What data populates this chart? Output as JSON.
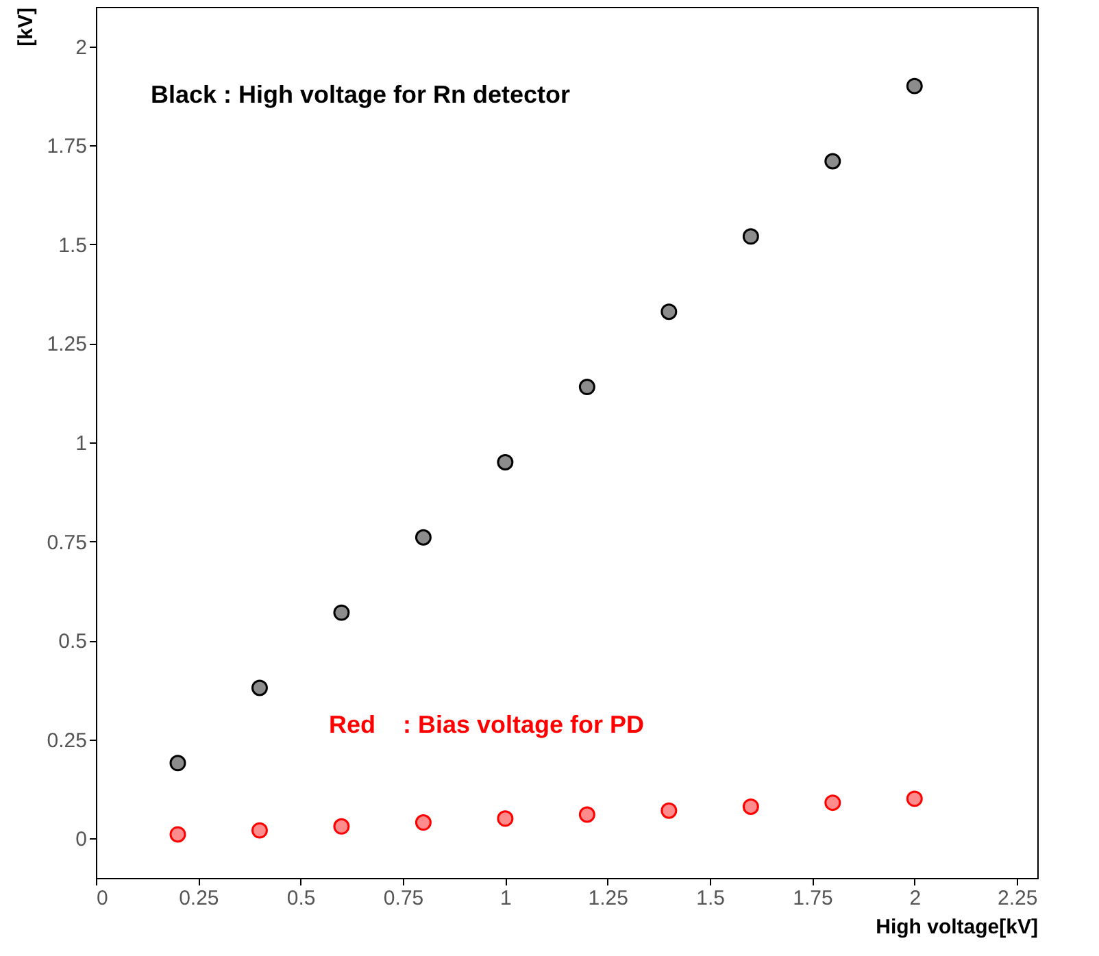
{
  "chart_data": {
    "type": "scatter",
    "xlabel": "High voltage[kV]",
    "ylabel": "[kV]",
    "x": [
      0.2,
      0.4,
      0.6,
      0.8,
      1.0,
      1.2,
      1.4,
      1.6,
      1.8,
      2.0
    ],
    "series": [
      {
        "color": "#000000",
        "values": [
          0.19,
          0.38,
          0.57,
          0.76,
          0.95,
          1.14,
          1.33,
          1.52,
          1.71,
          1.9
        ]
      },
      {
        "color": "#ff0000",
        "values": [
          0.01,
          0.02,
          0.03,
          0.04,
          0.05,
          0.06,
          0.07,
          0.08,
          0.09,
          0.1
        ]
      }
    ],
    "annotations": [
      "Black : High voltage for Rn detector",
      "Red    : Bias voltage for PD"
    ],
    "xlim": [
      0,
      2.3
    ],
    "ylim": [
      -0.1,
      2.1
    ],
    "xticks": [
      0,
      0.25,
      0.5,
      0.75,
      1,
      1.25,
      1.5,
      1.75,
      2,
      2.25
    ],
    "yticks": [
      0,
      0.25,
      0.5,
      0.75,
      1,
      1.25,
      1.5,
      1.75,
      2
    ],
    "marker": "circle",
    "grid": false
  }
}
